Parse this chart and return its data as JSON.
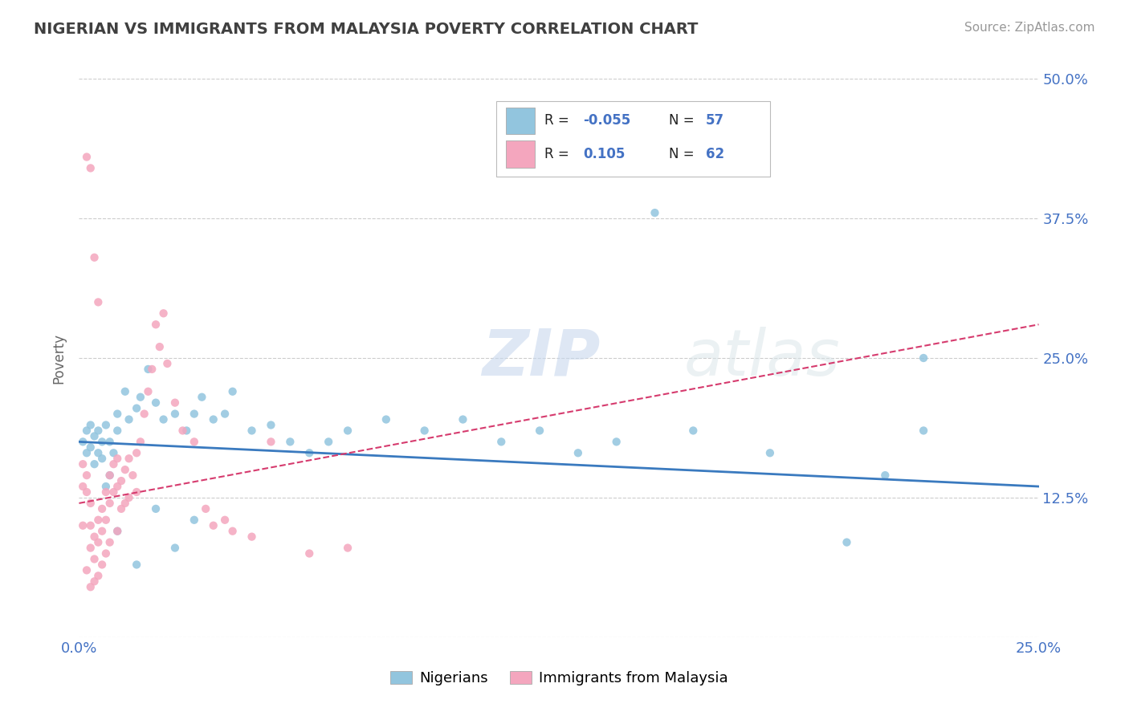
{
  "title": "NIGERIAN VS IMMIGRANTS FROM MALAYSIA POVERTY CORRELATION CHART",
  "source_text": "Source: ZipAtlas.com",
  "ylabel": "Poverty",
  "watermark": "ZIPatlas",
  "xlim": [
    0.0,
    0.25
  ],
  "ylim": [
    0.0,
    0.5
  ],
  "xticks": [
    0.0,
    0.05,
    0.1,
    0.15,
    0.2,
    0.25
  ],
  "yticks": [
    0.0,
    0.125,
    0.25,
    0.375,
    0.5
  ],
  "legend_R1": "-0.055",
  "legend_N1": "57",
  "legend_R2": "0.105",
  "legend_N2": "62",
  "legend_label1": "Nigerians",
  "legend_label2": "Immigrants from Malaysia",
  "blue_scatter_color": "#92c5de",
  "pink_scatter_color": "#f4a6be",
  "trend_blue": "#3a7abf",
  "trend_pink": "#d63b6e",
  "grid_color": "#cccccc",
  "title_color": "#404040",
  "axis_label_color": "#4472C4",
  "blue_points_x": [
    0.001,
    0.002,
    0.002,
    0.003,
    0.003,
    0.004,
    0.004,
    0.005,
    0.005,
    0.006,
    0.006,
    0.007,
    0.008,
    0.009,
    0.01,
    0.01,
    0.012,
    0.013,
    0.015,
    0.016,
    0.018,
    0.02,
    0.022,
    0.025,
    0.028,
    0.03,
    0.032,
    0.035,
    0.038,
    0.04,
    0.045,
    0.05,
    0.055,
    0.06,
    0.065,
    0.07,
    0.08,
    0.09,
    0.1,
    0.11,
    0.12,
    0.13,
    0.14,
    0.15,
    0.16,
    0.18,
    0.2,
    0.21,
    0.22,
    0.007,
    0.008,
    0.01,
    0.015,
    0.02,
    0.025,
    0.03,
    0.22
  ],
  "blue_points_y": [
    0.175,
    0.165,
    0.185,
    0.17,
    0.19,
    0.155,
    0.18,
    0.165,
    0.185,
    0.16,
    0.175,
    0.19,
    0.175,
    0.165,
    0.185,
    0.2,
    0.22,
    0.195,
    0.205,
    0.215,
    0.24,
    0.21,
    0.195,
    0.2,
    0.185,
    0.2,
    0.215,
    0.195,
    0.2,
    0.22,
    0.185,
    0.19,
    0.175,
    0.165,
    0.175,
    0.185,
    0.195,
    0.185,
    0.195,
    0.175,
    0.185,
    0.165,
    0.175,
    0.38,
    0.185,
    0.165,
    0.085,
    0.145,
    0.185,
    0.135,
    0.145,
    0.095,
    0.065,
    0.115,
    0.08,
    0.105,
    0.25
  ],
  "pink_points_x": [
    0.001,
    0.001,
    0.001,
    0.002,
    0.002,
    0.002,
    0.003,
    0.003,
    0.003,
    0.003,
    0.004,
    0.004,
    0.004,
    0.005,
    0.005,
    0.005,
    0.006,
    0.006,
    0.006,
    0.007,
    0.007,
    0.007,
    0.008,
    0.008,
    0.008,
    0.009,
    0.009,
    0.01,
    0.01,
    0.01,
    0.011,
    0.011,
    0.012,
    0.012,
    0.013,
    0.013,
    0.014,
    0.015,
    0.015,
    0.016,
    0.017,
    0.018,
    0.019,
    0.02,
    0.021,
    0.022,
    0.023,
    0.025,
    0.027,
    0.03,
    0.033,
    0.035,
    0.038,
    0.04,
    0.045,
    0.05,
    0.06,
    0.07,
    0.002,
    0.003,
    0.004,
    0.005
  ],
  "pink_points_y": [
    0.155,
    0.135,
    0.1,
    0.145,
    0.13,
    0.06,
    0.12,
    0.1,
    0.08,
    0.045,
    0.09,
    0.07,
    0.05,
    0.105,
    0.085,
    0.055,
    0.115,
    0.095,
    0.065,
    0.13,
    0.105,
    0.075,
    0.145,
    0.12,
    0.085,
    0.155,
    0.13,
    0.16,
    0.135,
    0.095,
    0.14,
    0.115,
    0.15,
    0.12,
    0.16,
    0.125,
    0.145,
    0.165,
    0.13,
    0.175,
    0.2,
    0.22,
    0.24,
    0.28,
    0.26,
    0.29,
    0.245,
    0.21,
    0.185,
    0.175,
    0.115,
    0.1,
    0.105,
    0.095,
    0.09,
    0.175,
    0.075,
    0.08,
    0.43,
    0.42,
    0.34,
    0.3
  ]
}
